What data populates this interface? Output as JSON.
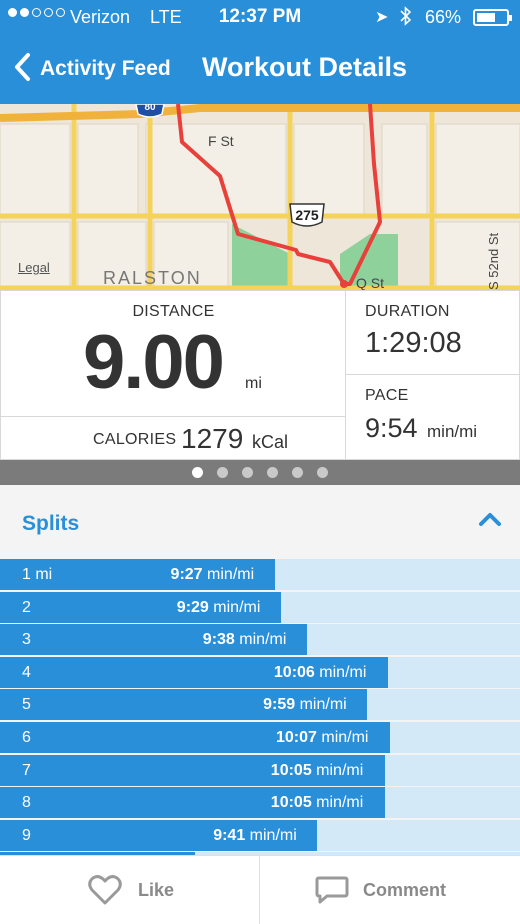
{
  "status_bar": {
    "carrier": "Verizon",
    "network": "LTE",
    "time": "12:37 PM",
    "battery": "66%",
    "battery_level": 0.66,
    "signal_bars": 2,
    "signal_total": 5
  },
  "nav": {
    "back_label": "Activity Feed",
    "title": "Workout Details"
  },
  "map": {
    "labels": {
      "street_f": "F St",
      "street_q": "Q St",
      "street_52nd": "S 52nd St",
      "route_275": "275",
      "route_80": "80",
      "town": "RALSTON"
    },
    "legal": "Legal",
    "route_color": "#e8403b"
  },
  "stats": {
    "distance_label": "DISTANCE",
    "distance_value": "9.00",
    "distance_unit": "mi",
    "calories_label": "CALORIES",
    "calories_value": "1279",
    "calories_unit": "kCal",
    "duration_label": "DURATION",
    "duration_value": "1:29:08",
    "pace_label": "PACE",
    "pace_value": "9:54",
    "pace_unit": "min/mi"
  },
  "pager": {
    "count": 6,
    "active": 0
  },
  "splits": {
    "title": "Splits",
    "unit": "min/mi",
    "rows": [
      {
        "label": "1 mi",
        "pace": "9:27",
        "level": 0.528
      },
      {
        "label": "2",
        "pace": "9:29",
        "level": 0.54
      },
      {
        "label": "3",
        "pace": "9:38",
        "level": 0.59
      },
      {
        "label": "4",
        "pace": "10:06",
        "level": 0.746
      },
      {
        "label": "5",
        "pace": "9:59",
        "level": 0.706
      },
      {
        "label": "6",
        "pace": "10:07",
        "level": 0.75
      },
      {
        "label": "7",
        "pace": "10:05",
        "level": 0.74
      },
      {
        "label": "8",
        "pace": "10:05",
        "level": 0.74
      },
      {
        "label": "9",
        "pace": "9:41",
        "level": 0.61
      }
    ]
  },
  "actions": {
    "like": "Like",
    "comment": "Comment"
  },
  "colors": {
    "accent": "#2a8fd9",
    "split_track": "#d4e9f7"
  }
}
